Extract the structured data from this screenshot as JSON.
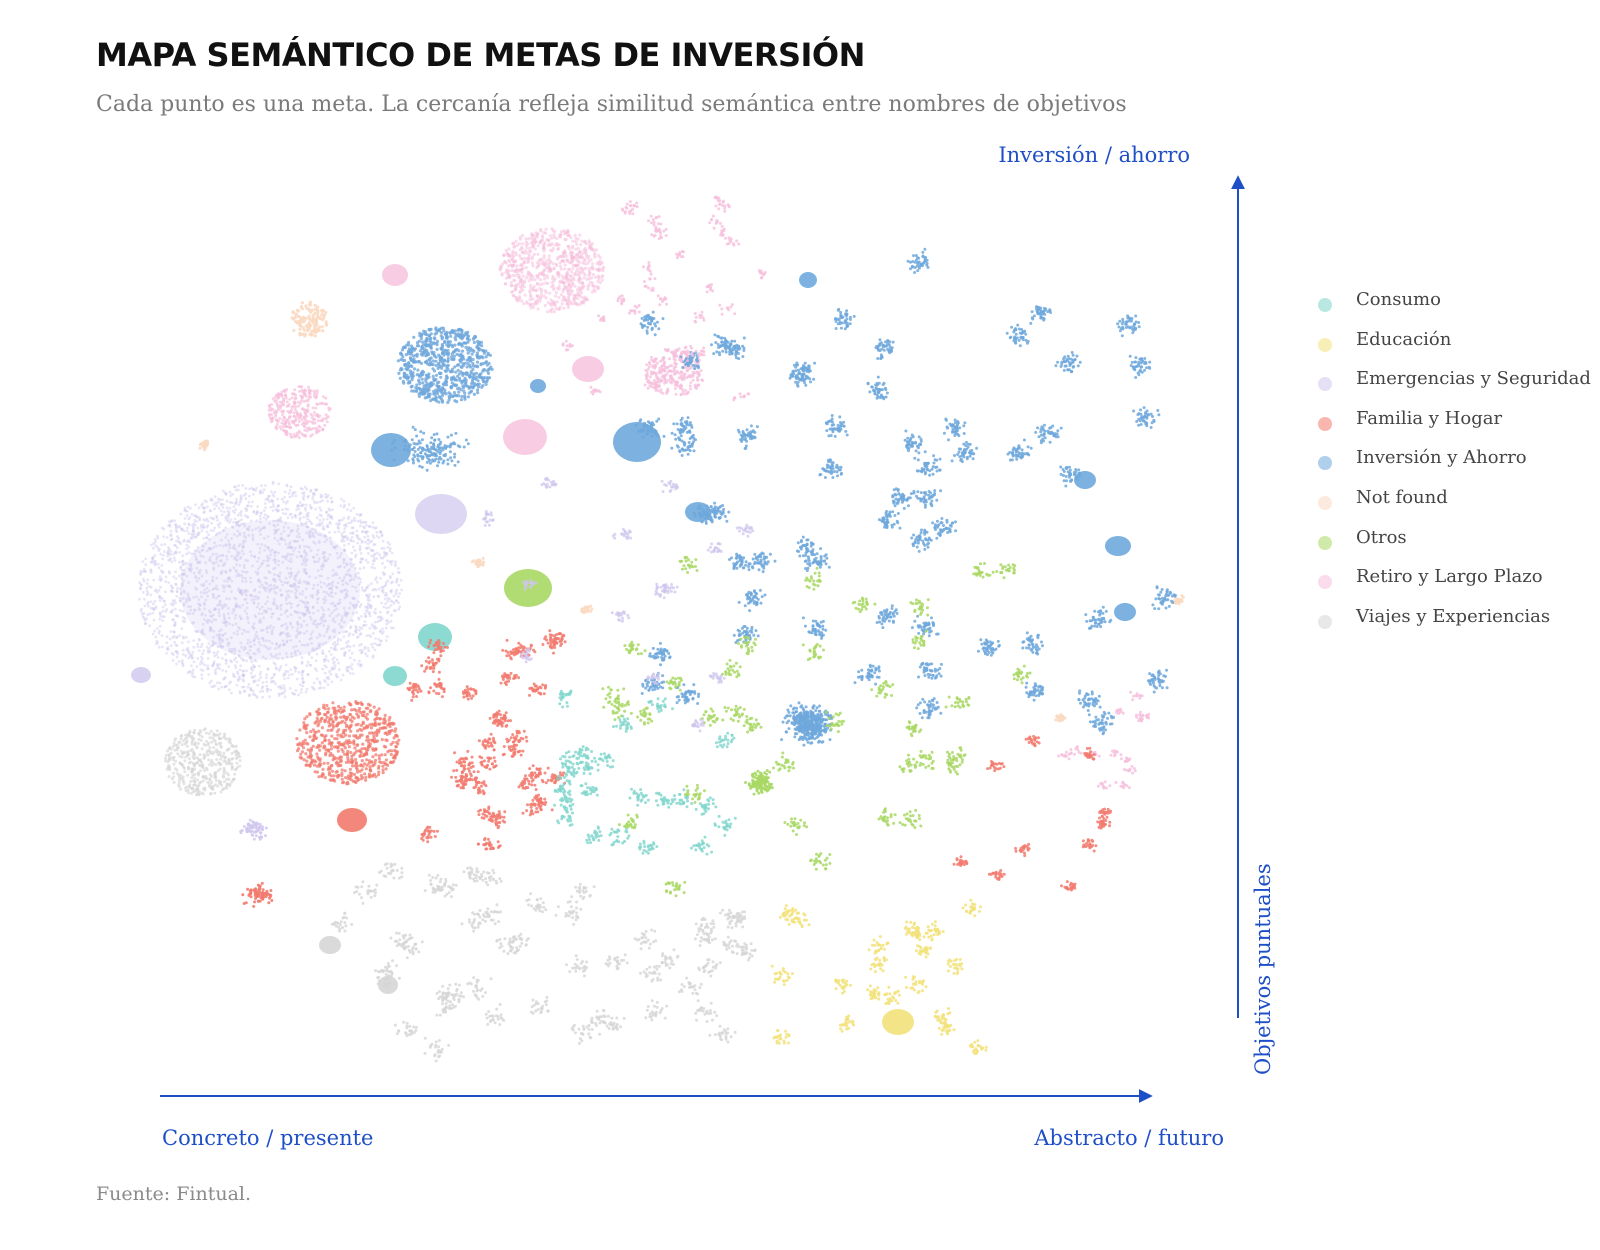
{
  "header": {
    "title": "MAPA SEMÁNTICO DE METAS DE INVERSIÓN",
    "subtitle": "Cada punto es una meta. La cercanía refleja similitud semántica entre nombres de objetivos"
  },
  "footer": {
    "source": "Fuente: Fintual."
  },
  "colors": {
    "axis": "#1f4fc7"
  },
  "chart_data": {
    "type": "scatter",
    "title": "MAPA SEMÁNTICO DE METAS DE INVERSIÓN",
    "xlabel_left": "Concreto / presente",
    "xlabel_right": "Abstracto / futuro",
    "ylabel_top": "Inversión / ahorro",
    "ylabel_bottom": "Objetivos puntuales",
    "legend_position": "right",
    "grid": false,
    "categories": [
      {
        "name": "Consumo",
        "color": "#7fd6cc"
      },
      {
        "name": "Educación",
        "color": "#f2e27a"
      },
      {
        "name": "Emergencias y Seguridad",
        "color": "#cfc6ee"
      },
      {
        "name": "Familia y Hogar",
        "color": "#f27a6e"
      },
      {
        "name": "Inversión y Ahorro",
        "color": "#6fa8dc"
      },
      {
        "name": "Not found",
        "color": "#fbd9c2"
      },
      {
        "name": "Otros",
        "color": "#a9d865"
      },
      {
        "name": "Retiro y Largo Plazo",
        "color": "#f6bfdc"
      },
      {
        "name": "Viajes y Experiencias",
        "color": "#d6d6d6"
      }
    ]
  }
}
